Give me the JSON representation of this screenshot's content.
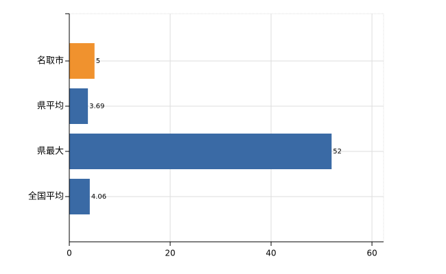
{
  "chart_data": {
    "type": "hbar",
    "categories": [
      "名取市",
      "県平均",
      "県最大",
      "全国平均"
    ],
    "values": [
      5,
      3.69,
      52,
      4.06
    ],
    "colors": [
      "#f0922e",
      "#3a6aa5",
      "#3a6aa5",
      "#3a6aa5"
    ],
    "xlim": [
      0,
      62.3
    ],
    "xticks": [
      0,
      20,
      40,
      60
    ],
    "grid": true
  }
}
